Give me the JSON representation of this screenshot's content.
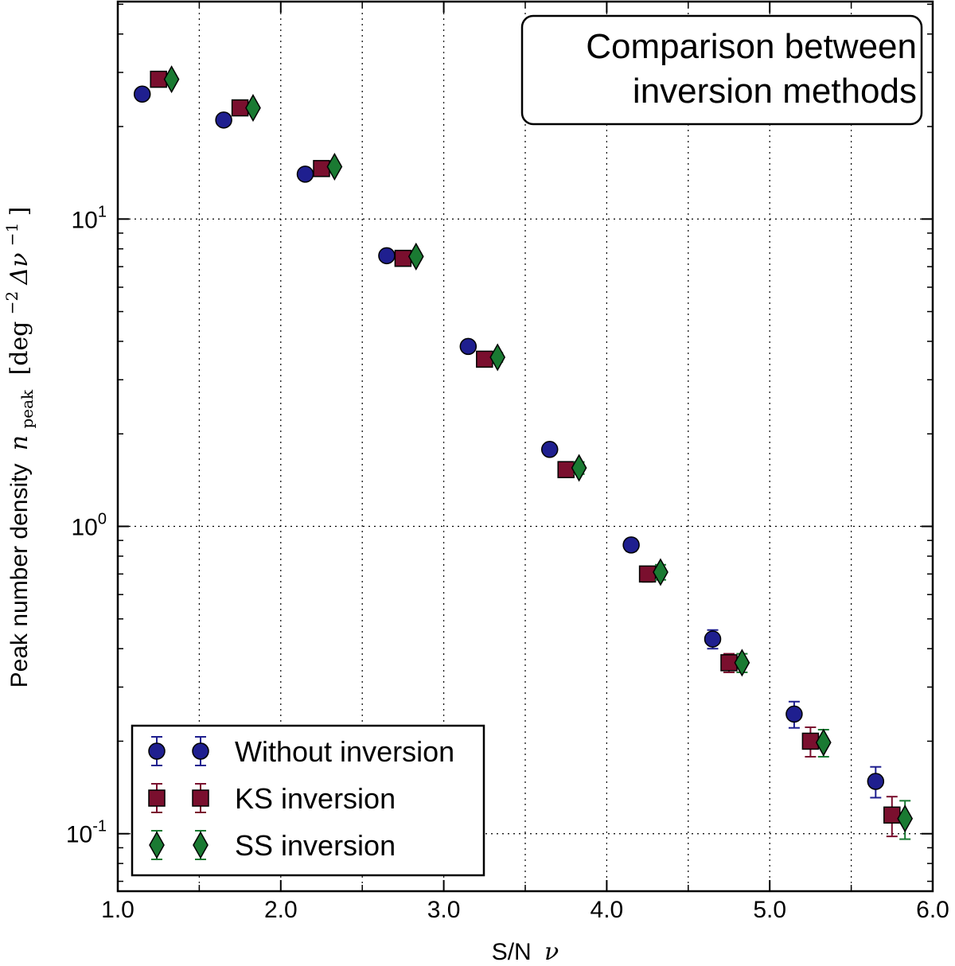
{
  "chart_data": {
    "type": "scatter",
    "title_lines": [
      "Comparison between",
      "inversion methods"
    ],
    "xlabel": "S/N",
    "xlabel_symbol": "ν",
    "ylabel": "Peak number density",
    "ylabel_symbol": "n",
    "ylabel_subscript": "peak",
    "ylabel_units_prefix": "[deg",
    "ylabel_units_exp1": "−2",
    "ylabel_units_mid": "Δν",
    "ylabel_units_exp2": "−1",
    "ylabel_units_suffix": "]",
    "xlim": [
      1.0,
      6.0
    ],
    "ylim": [
      0.065,
      51
    ],
    "yscale": "log",
    "grid": true,
    "legend_position": "lower-left",
    "x_ticks": [
      1.0,
      2.0,
      3.0,
      4.0,
      5.0,
      6.0
    ],
    "x_tick_labels": [
      "1.0",
      "2.0",
      "3.0",
      "4.0",
      "5.0",
      "6.0"
    ],
    "x_minor_ticks": [
      1.5,
      2.5,
      3.5,
      4.5,
      5.5
    ],
    "y_ticks": [
      {
        "value": 10,
        "base": "10",
        "exp": "1"
      },
      {
        "value": 1,
        "base": "10",
        "exp": "0"
      },
      {
        "value": 0.1,
        "base": "10",
        "exp": "-1"
      }
    ],
    "series": [
      {
        "name": "Without inversion",
        "marker": "circle",
        "color": "#1f1f8f",
        "ecolor": "#1f1f8f",
        "x": [
          1.15,
          1.65,
          2.15,
          2.65,
          3.15,
          3.65,
          4.15,
          4.65,
          5.15,
          5.65
        ],
        "y": [
          25.5,
          21.0,
          14.0,
          7.6,
          3.85,
          1.78,
          0.87,
          0.43,
          0.245,
          0.148
        ],
        "err": [
          0.5,
          0.45,
          0.3,
          0.2,
          0.12,
          0.07,
          0.04,
          0.03,
          0.024,
          0.017
        ]
      },
      {
        "name": "KS inversion",
        "marker": "square",
        "color": "#7a0f2e",
        "ecolor": "#7a0f2e",
        "x": [
          1.25,
          1.75,
          2.25,
          2.75,
          3.25,
          3.75,
          4.25,
          4.75,
          5.25,
          5.75
        ],
        "y": [
          28.5,
          23.0,
          14.6,
          7.45,
          3.5,
          1.53,
          0.7,
          0.36,
          0.2,
          0.115
        ],
        "err": [
          0.5,
          0.45,
          0.3,
          0.2,
          0.12,
          0.07,
          0.04,
          0.025,
          0.022,
          0.017
        ]
      },
      {
        "name": "SS inversion",
        "marker": "diamond",
        "color": "#1a7a32",
        "ecolor": "#1a7a32",
        "x": [
          1.33,
          1.83,
          2.33,
          2.83,
          3.33,
          3.83,
          4.33,
          4.83,
          5.33,
          5.83
        ],
        "y": [
          28.5,
          23.0,
          14.8,
          7.55,
          3.55,
          1.55,
          0.71,
          0.36,
          0.198,
          0.112
        ],
        "err": [
          0.5,
          0.45,
          0.3,
          0.2,
          0.12,
          0.07,
          0.04,
          0.025,
          0.02,
          0.016
        ]
      }
    ]
  }
}
